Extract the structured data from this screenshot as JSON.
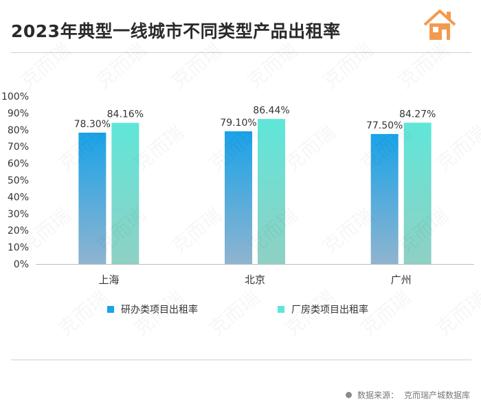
{
  "header": {
    "title": "2023年典型一线城市不同类型产品出租率",
    "logo_icon": "house-icon",
    "accent_color": "#f39a4f"
  },
  "chart_data": {
    "type": "bar",
    "title": "2023年典型一线城市不同类型产品出租率",
    "categories": [
      "上海",
      "北京",
      "广州"
    ],
    "series": [
      {
        "name": "研办类项目出租率",
        "values": [
          78.3,
          79.1,
          77.5
        ],
        "labels": [
          "78.30%",
          "79.10%",
          "77.50%"
        ],
        "color_top": "#1aa3e8",
        "color_bottom": "#8fb4cf"
      },
      {
        "name": "厂房类项目出租率",
        "values": [
          84.16,
          86.44,
          84.27
        ],
        "labels": [
          "84.16%",
          "86.44%",
          "84.27%"
        ],
        "color_top": "#5fe6d8",
        "color_bottom": "#8fd0c4"
      }
    ],
    "ylim": [
      0,
      100
    ],
    "yticks": [
      "0%",
      "10%",
      "20%",
      "30%",
      "40%",
      "50%",
      "60%",
      "70%",
      "80%",
      "90%",
      "100%"
    ],
    "xlabel": "",
    "ylabel": "",
    "grid": false,
    "legend_position": "bottom"
  },
  "footer": {
    "source_label": "数据来源：",
    "source_text": "克而瑞产城数据库"
  },
  "watermark_text": "克而瑞"
}
